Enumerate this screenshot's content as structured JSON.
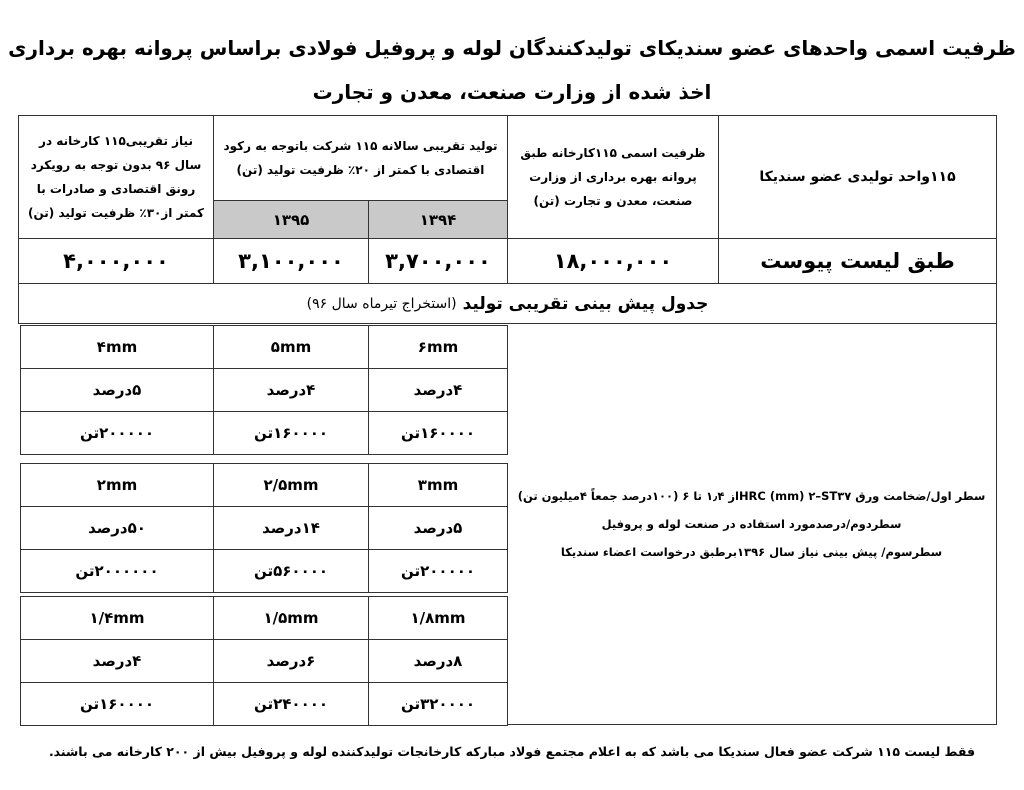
{
  "title": {
    "line1": "ظرفیت اسمی واحدهای عضو سندیکای تولیدکنندگان لوله و پروفیل فولادی براساس پروانه بهره برداری",
    "line2": "اخذ شده از وزارت صنعت، معدن و تجارت"
  },
  "capacity_table": {
    "col_units": "۱۱۵واحد تولیدی عضو سندیکا",
    "col_nominal": "ظرفیت اسمی ۱۱۵کارخانه طبق پروانه بهره برداری از وزارت صنعت، معدن و تجارت (تن)",
    "col_production": "تولید تقریبی سالانه ۱۱۵ شرکت باتوجه به رکود اقتصادی با کمتر از ۲۰٪ ظرفیت تولید (تن)",
    "year_1394": "۱۳۹۴",
    "year_1395": "۱۳۹۵",
    "col_need": "نیاز تقریبی۱۱۵ کارخانه در سال ۹۶ بدون توجه به رویکرد رونق اقتصادی و صادرات با کمتر از۳۰٪ ظرفیت تولید (تن)",
    "val_units": "طبق لیست پیوست",
    "val_nominal": "۱۸,۰۰۰,۰۰۰",
    "val_1394": "۳,۷۰۰,۰۰۰",
    "val_1395": "۳,۱۰۰,۰۰۰",
    "val_need": "۴,۰۰۰,۰۰۰"
  },
  "forecast": {
    "title_bold": "جدول پیش بینی تقریبی تولید",
    "title_note": "(استخراج تیرماه سال ۹۶)",
    "notes": [
      "سطر اول/ضخامت ورق HRC (mm) ۲–ST۳۷از ۱٫۴ تا ۶ (۱۰۰درصد جمعاً ۴میلیون تن)",
      "سطردوم/درصدمورد استفاده در صنعت لوله و پروفیل",
      "سطرسوم/ پیش بینی نیاز سال ۱۳۹۶برطبق درخواست اعضاء سندیکا"
    ],
    "grids": [
      [
        [
          "۶mm",
          "۴درصد",
          "۱۶۰۰۰۰تن"
        ],
        [
          "۵mm",
          "۴درصد",
          "۱۶۰۰۰۰تن"
        ],
        [
          "۴mm",
          "۵درصد",
          "۲۰۰۰۰۰تن"
        ]
      ],
      [
        [
          "۳mm",
          "۵درصد",
          "۲۰۰۰۰۰تن"
        ],
        [
          "۲/۵mm",
          "۱۴درصد",
          "۵۶۰۰۰۰تن"
        ],
        [
          "۲mm",
          "۵۰درصد",
          "۲۰۰۰۰۰۰تن"
        ]
      ],
      [
        [
          "۱/۸mm",
          "۸درصد",
          "۳۲۰۰۰۰تن"
        ],
        [
          "۱/۵mm",
          "۶درصد",
          "۲۴۰۰۰۰تن"
        ],
        [
          "۱/۴mm",
          "۴درصد",
          "۱۶۰۰۰۰تن"
        ]
      ]
    ]
  },
  "footer": "فقط لیست ۱۱۵ شرکت عضو فعال سندیکا می باشد که به اعلام مجتمع فولاد مبارکه کارخانجات تولیدکننده لوله و پروفیل بیش از ۲۰۰ کارخانه می باشند."
}
